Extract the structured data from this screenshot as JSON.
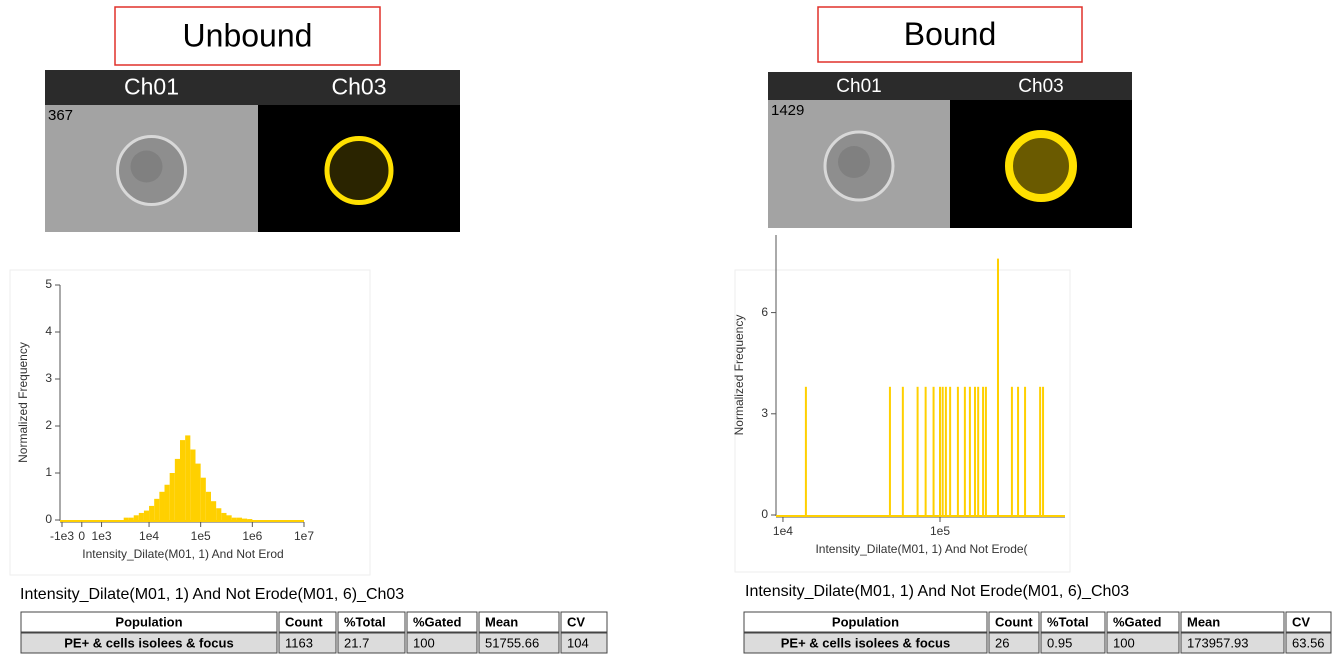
{
  "panels": [
    {
      "title": "Unbound",
      "channels": [
        "Ch01",
        "Ch03"
      ],
      "object_id": "367",
      "table": {
        "caption": "Intensity_Dilate(M01, 1) And Not Erode(M01, 6)_Ch03",
        "header": [
          "Population",
          "Count",
          "%Total",
          "%Gated",
          "Mean",
          "CV"
        ],
        "rows": [
          [
            "PE+ & cells isolees & focus",
            "1163",
            "21.7",
            "100",
            "51755.66",
            "104"
          ]
        ]
      }
    },
    {
      "title": "Bound",
      "channels": [
        "Ch01",
        "Ch03"
      ],
      "object_id": "1429",
      "table": {
        "caption": "Intensity_Dilate(M01, 1) And Not Erode(M01, 6)_Ch03",
        "header": [
          "Population",
          "Count",
          "%Total",
          "%Gated",
          "Mean",
          "CV"
        ],
        "rows": [
          [
            "PE+ & cells isolees & focus",
            "26",
            "0.95",
            "100",
            "173957.93",
            "63.56"
          ]
        ]
      }
    }
  ],
  "chart_data": [
    {
      "type": "histogram",
      "xscale": "hyperlog",
      "color": "#ffd000",
      "x_label": "Intensity_Dilate(M01, 1) And Not Erod",
      "y_label": "Normalized Frequency",
      "bins": [
        3162,
        3981,
        5012,
        6310,
        7943,
        10000,
        12589,
        15849,
        19953,
        25119,
        31623,
        39811,
        50119,
        63096,
        79433,
        100000,
        125893,
        158489,
        199526,
        251189,
        316228,
        398107,
        501187,
        630957,
        794328,
        1000000
      ],
      "values": [
        0.05,
        0.05,
        0.1,
        0.15,
        0.2,
        0.3,
        0.45,
        0.6,
        0.75,
        1.0,
        1.3,
        1.7,
        1.8,
        1.5,
        1.2,
        0.9,
        0.6,
        0.4,
        0.25,
        0.15,
        0.1,
        0.05,
        0.05,
        0.03,
        0.02
      ],
      "xlim": [
        -1000,
        10000000
      ],
      "xticks": [
        {
          "value": -1000,
          "label": "-1e3"
        },
        0,
        {
          "value": 1000,
          "label": "1e3"
        },
        {
          "value": 10000,
          "label": "1e4"
        },
        {
          "value": 100000,
          "label": "1e5"
        },
        {
          "value": 1000000,
          "label": "1e6"
        },
        {
          "value": 10000000,
          "label": "1e7"
        }
      ],
      "ylim": [
        0,
        5
      ],
      "yticks": [
        0,
        1,
        2,
        3,
        4,
        5
      ]
    },
    {
      "type": "bar",
      "xscale": "log",
      "color": "#ffd000",
      "x_label": "Intensity_Dilate(M01, 1) And Not Erode(",
      "y_label": "Normalized Frequency",
      "x": [
        14000,
        48000,
        58000,
        72000,
        81000,
        91000,
        100000,
        104000,
        109000,
        116000,
        130000,
        144000,
        155000,
        167000,
        175000,
        188000,
        196000,
        234000,
        287000,
        314000,
        348000,
        434000,
        453000
      ],
      "values": [
        3.8,
        3.8,
        3.8,
        3.8,
        3.8,
        3.8,
        3.8,
        3.8,
        3.8,
        3.8,
        3.8,
        3.8,
        3.8,
        3.8,
        3.8,
        3.8,
        3.8,
        7.6,
        3.8,
        3.8,
        3.8,
        3.8,
        3.8
      ],
      "xlim": [
        9300,
        625000
      ],
      "xticks": [
        {
          "value": 10000,
          "label": "1e4"
        },
        {
          "value": 100000,
          "label": "1e5"
        }
      ],
      "ylim": [
        0,
        8.3
      ],
      "yticks": [
        0,
        3,
        6
      ]
    }
  ]
}
